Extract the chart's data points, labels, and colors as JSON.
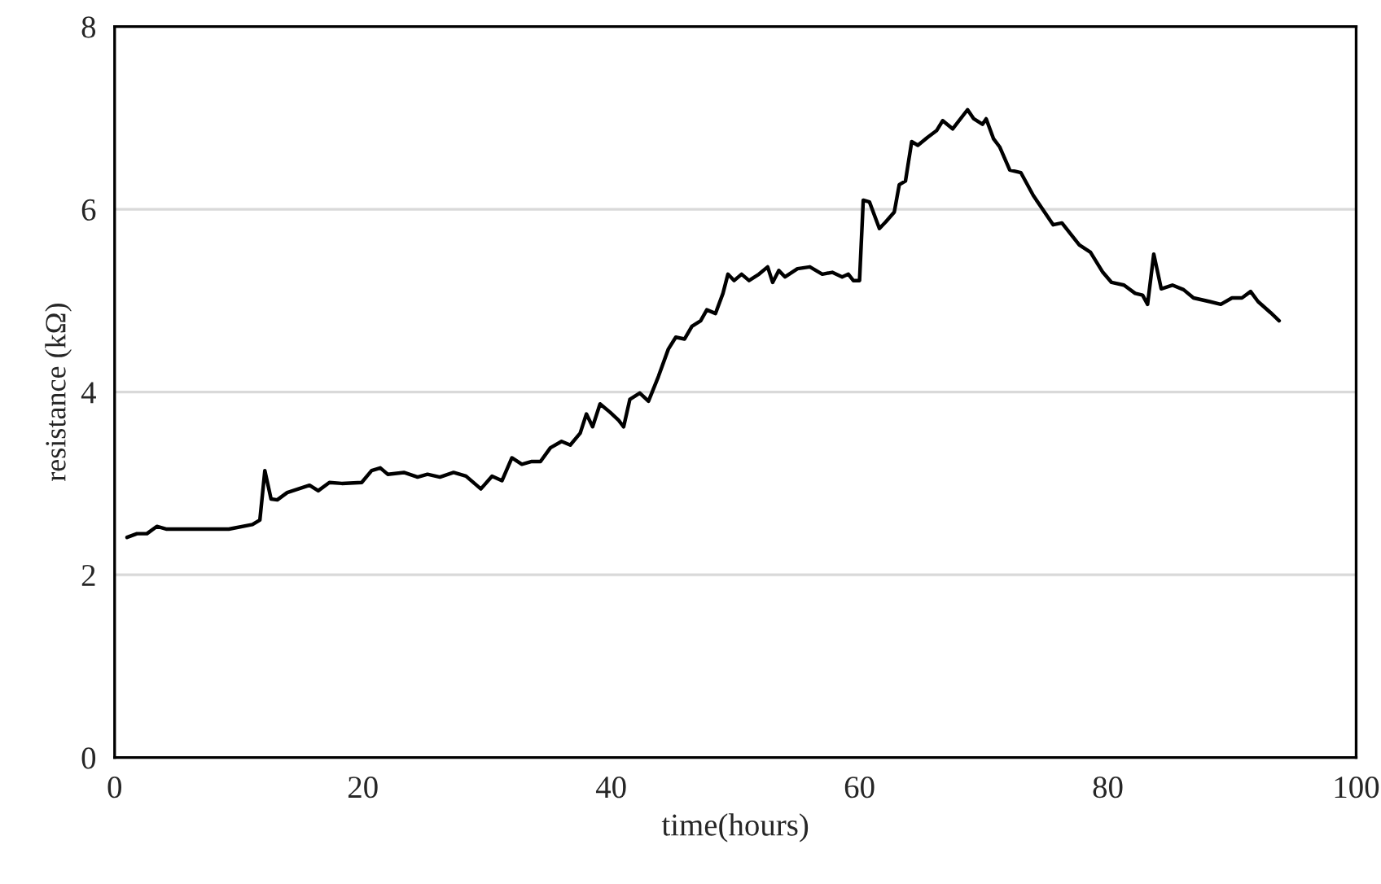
{
  "chart_data": {
    "type": "line",
    "xlabel": "time(hours)",
    "ylabel": "resistance (kΩ)",
    "xlim": [
      0,
      100
    ],
    "xticks": [
      0,
      20,
      40,
      60,
      80,
      100
    ],
    "ylim": [
      0,
      8
    ],
    "yticks": [
      0,
      2,
      4,
      6,
      8
    ],
    "grid": "y",
    "marker": "none",
    "line_style": "solid",
    "series": [
      {
        "color": "#000000",
        "x": [
          1.0,
          1.8,
          2.6,
          3.4,
          4.2,
          6.6,
          9.2,
          11.1,
          11.7,
          12.1,
          12.6,
          13.1,
          13.9,
          14.8,
          15.7,
          16.4,
          17.3,
          18.3,
          19.9,
          20.7,
          21.4,
          22.0,
          23.3,
          24.4,
          25.2,
          26.2,
          27.3,
          28.3,
          29.5,
          30.4,
          31.2,
          32.0,
          32.8,
          33.6,
          34.3,
          35.1,
          36.0,
          36.7,
          37.5,
          38.0,
          38.5,
          39.1,
          39.9,
          40.6,
          41.0,
          41.5,
          42.3,
          43.0,
          43.8,
          44.6,
          45.2,
          45.9,
          46.5,
          47.2,
          47.7,
          48.4,
          49.0,
          49.4,
          49.9,
          50.5,
          51.1,
          51.9,
          52.6,
          53.0,
          53.5,
          54.0,
          55.0,
          56.0,
          57.0,
          57.8,
          58.6,
          59.1,
          59.5,
          60.0,
          60.3,
          60.8,
          61.6,
          62.1,
          62.8,
          63.2,
          63.7,
          64.2,
          64.7,
          65.5,
          66.2,
          66.7,
          67.5,
          68.7,
          69.2,
          69.9,
          70.2,
          70.8,
          71.3,
          72.1,
          73.0,
          74.0,
          75.6,
          76.3,
          77.7,
          78.6,
          79.6,
          80.3,
          81.3,
          82.2,
          82.8,
          83.2,
          83.7,
          84.3,
          85.2,
          86.1,
          86.9,
          88.2,
          89.1,
          90.0,
          90.8,
          91.5,
          92.1,
          93.1,
          93.8
        ],
        "values": [
          2.41,
          2.45,
          2.45,
          2.53,
          2.5,
          2.5,
          2.5,
          2.55,
          2.6,
          3.14,
          2.83,
          2.82,
          2.9,
          2.94,
          2.98,
          2.92,
          3.01,
          3.0,
          3.01,
          3.14,
          3.17,
          3.1,
          3.12,
          3.07,
          3.1,
          3.07,
          3.12,
          3.08,
          2.94,
          3.08,
          3.03,
          3.28,
          3.21,
          3.24,
          3.24,
          3.39,
          3.46,
          3.42,
          3.55,
          3.76,
          3.62,
          3.87,
          3.78,
          3.69,
          3.62,
          3.92,
          3.99,
          3.9,
          4.17,
          4.47,
          4.6,
          4.58,
          4.72,
          4.78,
          4.9,
          4.86,
          5.08,
          5.29,
          5.22,
          5.29,
          5.22,
          5.29,
          5.37,
          5.2,
          5.33,
          5.26,
          5.35,
          5.37,
          5.29,
          5.31,
          5.26,
          5.29,
          5.22,
          5.22,
          6.1,
          6.08,
          5.79,
          5.86,
          5.97,
          6.27,
          6.31,
          6.74,
          6.7,
          6.79,
          6.86,
          6.97,
          6.88,
          7.09,
          6.99,
          6.93,
          6.99,
          6.77,
          6.68,
          6.43,
          6.4,
          6.15,
          5.83,
          5.85,
          5.61,
          5.53,
          5.31,
          5.2,
          5.17,
          5.08,
          5.06,
          4.96,
          5.51,
          5.13,
          5.17,
          5.12,
          5.03,
          4.99,
          4.96,
          5.03,
          5.03,
          5.1,
          4.99,
          4.87,
          4.78
        ]
      }
    ]
  }
}
